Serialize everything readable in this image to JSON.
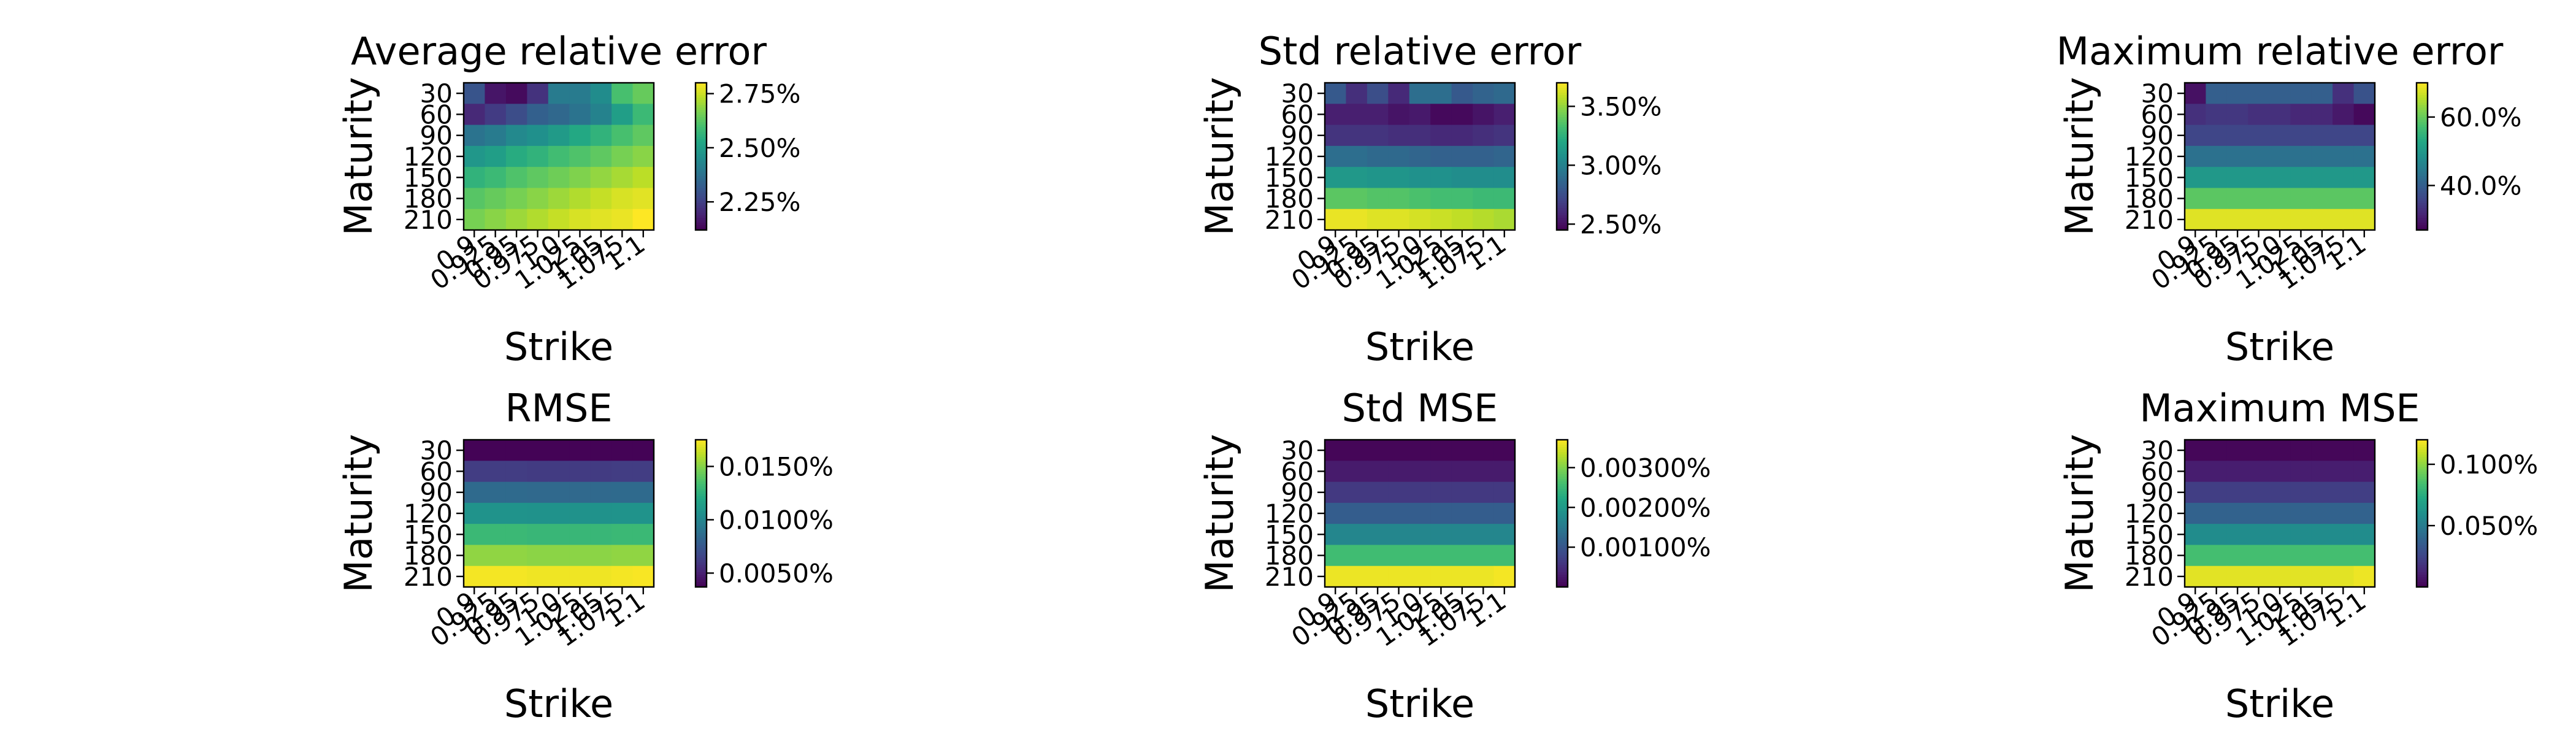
{
  "chart_data": [
    {
      "type": "heatmap",
      "title": "Average relative error",
      "xlabel": "Strike",
      "ylabel": "Maturity",
      "x_ticks": [
        "0.9",
        "0.925",
        "0.95",
        "0.975",
        "1.0",
        "1.025",
        "1.05",
        "1.075",
        "1.1"
      ],
      "y_ticks": [
        "30",
        "60",
        "90",
        "120",
        "150",
        "180",
        "210"
      ],
      "colormap": "viridis",
      "colorbar": {
        "min": 2.12,
        "max": 2.8,
        "ticks": [
          2.25,
          2.5,
          2.75
        ],
        "tick_labels": [
          "2.25%",
          "2.50%",
          "2.75%"
        ]
      },
      "values": [
        [
          2.3,
          2.16,
          2.14,
          2.22,
          2.4,
          2.4,
          2.45,
          2.6,
          2.64
        ],
        [
          2.2,
          2.24,
          2.28,
          2.33,
          2.35,
          2.38,
          2.42,
          2.5,
          2.58
        ],
        [
          2.38,
          2.4,
          2.44,
          2.46,
          2.49,
          2.53,
          2.56,
          2.6,
          2.63
        ],
        [
          2.48,
          2.5,
          2.54,
          2.56,
          2.59,
          2.61,
          2.63,
          2.66,
          2.68
        ],
        [
          2.56,
          2.58,
          2.61,
          2.63,
          2.65,
          2.67,
          2.69,
          2.71,
          2.73
        ],
        [
          2.62,
          2.64,
          2.66,
          2.68,
          2.7,
          2.72,
          2.74,
          2.76,
          2.77
        ],
        [
          2.66,
          2.68,
          2.7,
          2.72,
          2.74,
          2.76,
          2.77,
          2.78,
          2.8
        ]
      ]
    },
    {
      "type": "heatmap",
      "title": "Std relative error",
      "xlabel": "Strike",
      "ylabel": "Maturity",
      "x_ticks": [
        "0.9",
        "0.925",
        "0.95",
        "0.975",
        "1.0",
        "1.025",
        "1.05",
        "1.075",
        "1.1"
      ],
      "y_ticks": [
        "30",
        "60",
        "90",
        "120",
        "150",
        "180",
        "210"
      ],
      "colormap": "viridis",
      "colorbar": {
        "min": 2.45,
        "max": 3.7,
        "ticks": [
          2.5,
          3.0,
          3.5
        ],
        "tick_labels": [
          "2.50%",
          "3.00%",
          "3.50%"
        ]
      },
      "values": [
        [
          2.8,
          2.62,
          2.75,
          2.6,
          2.9,
          2.9,
          2.8,
          2.85,
          2.88
        ],
        [
          2.56,
          2.56,
          2.56,
          2.52,
          2.54,
          2.48,
          2.48,
          2.52,
          2.56
        ],
        [
          2.64,
          2.64,
          2.64,
          2.62,
          2.62,
          2.6,
          2.6,
          2.62,
          2.64
        ],
        [
          2.9,
          2.9,
          2.88,
          2.88,
          2.86,
          2.84,
          2.84,
          2.84,
          2.86
        ],
        [
          3.12,
          3.12,
          3.1,
          3.1,
          3.08,
          3.08,
          3.06,
          3.06,
          3.06
        ],
        [
          3.38,
          3.38,
          3.36,
          3.36,
          3.34,
          3.32,
          3.32,
          3.3,
          3.3
        ],
        [
          3.66,
          3.66,
          3.64,
          3.64,
          3.62,
          3.6,
          3.58,
          3.56,
          3.54
        ]
      ]
    },
    {
      "type": "heatmap",
      "title": "Maximum relative error",
      "xlabel": "Strike",
      "ylabel": "Maturity",
      "x_ticks": [
        "0.9",
        "0.925",
        "0.95",
        "0.975",
        "1.0",
        "1.025",
        "1.05",
        "1.075",
        "1.1"
      ],
      "y_ticks": [
        "30",
        "60",
        "90",
        "120",
        "150",
        "180",
        "210"
      ],
      "colormap": "viridis",
      "colorbar": {
        "min": 27.0,
        "max": 70.0,
        "ticks": [
          40.0,
          60.0
        ],
        "tick_labels": [
          "40.0%",
          "60.0%"
        ]
      },
      "values": [
        [
          29.0,
          40.0,
          40.0,
          40.0,
          40.0,
          40.0,
          40.0,
          33.0,
          38.0
        ],
        [
          33.0,
          34.0,
          34.0,
          33.0,
          33.0,
          32.0,
          32.0,
          30.0,
          28.0
        ],
        [
          36.0,
          36.0,
          36.0,
          36.0,
          36.0,
          36.0,
          36.0,
          36.0,
          36.0
        ],
        [
          43.0,
          43.0,
          43.0,
          43.0,
          43.0,
          43.0,
          43.0,
          43.0,
          43.0
        ],
        [
          50.0,
          50.0,
          50.0,
          50.0,
          50.0,
          50.0,
          50.0,
          50.0,
          50.0
        ],
        [
          59.0,
          59.0,
          59.0,
          59.0,
          59.0,
          59.0,
          59.0,
          59.0,
          59.0
        ],
        [
          68.0,
          68.0,
          68.0,
          68.0,
          68.0,
          68.0,
          68.0,
          68.0,
          68.0
        ]
      ]
    },
    {
      "type": "heatmap",
      "title": "RMSE",
      "xlabel": "Strike",
      "ylabel": "Maturity",
      "x_ticks": [
        "0.9",
        "0.925",
        "0.95",
        "0.975",
        "1.0",
        "1.025",
        "1.05",
        "1.075",
        "1.1"
      ],
      "y_ticks": [
        "30",
        "60",
        "90",
        "120",
        "150",
        "180",
        "210"
      ],
      "colormap": "viridis",
      "colorbar": {
        "min": 0.0037,
        "max": 0.0175,
        "ticks": [
          0.005,
          0.01,
          0.015
        ],
        "tick_labels": [
          "0.0050%",
          "0.0100%",
          "0.0150%"
        ]
      },
      "values": [
        [
          0.0038,
          0.0038,
          0.0038,
          0.0038,
          0.0038,
          0.0038,
          0.0038,
          0.0038,
          0.0038
        ],
        [
          0.0062,
          0.0062,
          0.0062,
          0.0061,
          0.0061,
          0.0061,
          0.0061,
          0.0062,
          0.0062
        ],
        [
          0.0085,
          0.0085,
          0.0085,
          0.0084,
          0.0084,
          0.0084,
          0.0084,
          0.0085,
          0.0085
        ],
        [
          0.0108,
          0.0108,
          0.0108,
          0.0107,
          0.0107,
          0.0107,
          0.0107,
          0.0108,
          0.0108
        ],
        [
          0.013,
          0.013,
          0.013,
          0.0129,
          0.0129,
          0.0129,
          0.0129,
          0.013,
          0.013
        ],
        [
          0.0152,
          0.0152,
          0.0152,
          0.0151,
          0.0151,
          0.0151,
          0.0151,
          0.0152,
          0.0152
        ],
        [
          0.0173,
          0.0173,
          0.0173,
          0.0172,
          0.0172,
          0.0172,
          0.0172,
          0.0173,
          0.0174
        ]
      ]
    },
    {
      "type": "heatmap",
      "title": "Std MSE",
      "xlabel": "Strike",
      "ylabel": "Maturity",
      "x_ticks": [
        "0.9",
        "0.925",
        "0.95",
        "0.975",
        "1.0",
        "1.025",
        "1.05",
        "1.075",
        "1.1"
      ],
      "y_ticks": [
        "30",
        "60",
        "90",
        "120",
        "150",
        "180",
        "210"
      ],
      "colormap": "viridis",
      "colorbar": {
        "min": 0.0,
        "max": 0.0037,
        "ticks": [
          0.001,
          0.002,
          0.003
        ],
        "tick_labels": [
          "0.00100%",
          "0.00200%",
          "0.00300%"
        ]
      },
      "values": [
        [
          5e-05,
          5e-05,
          5e-05,
          5e-05,
          5e-05,
          5e-05,
          5e-05,
          5e-05,
          5e-05
        ],
        [
          0.00028,
          0.00028,
          0.00028,
          0.00028,
          0.00028,
          0.00028,
          0.00028,
          0.00028,
          0.00028
        ],
        [
          0.00062,
          0.00062,
          0.00062,
          0.00062,
          0.00062,
          0.00062,
          0.00062,
          0.00062,
          0.00062
        ],
        [
          0.0011,
          0.0011,
          0.0011,
          0.0011,
          0.0011,
          0.0011,
          0.0011,
          0.0011,
          0.0011
        ],
        [
          0.0017,
          0.0017,
          0.0017,
          0.0017,
          0.0017,
          0.0017,
          0.0017,
          0.0017,
          0.0017
        ],
        [
          0.00255,
          0.00255,
          0.00255,
          0.00255,
          0.00255,
          0.00255,
          0.00255,
          0.00255,
          0.00255
        ],
        [
          0.0036,
          0.0036,
          0.0036,
          0.0036,
          0.0036,
          0.0036,
          0.0036,
          0.0036,
          0.00365
        ]
      ]
    },
    {
      "type": "heatmap",
      "title": "Maximum MSE",
      "xlabel": "Strike",
      "ylabel": "Maturity",
      "x_ticks": [
        "0.9",
        "0.925",
        "0.95",
        "0.975",
        "1.0",
        "1.025",
        "1.05",
        "1.075",
        "1.1"
      ],
      "y_ticks": [
        "30",
        "60",
        "90",
        "120",
        "150",
        "180",
        "210"
      ],
      "colormap": "viridis",
      "colorbar": {
        "min": 0.0,
        "max": 0.12,
        "ticks": [
          0.05,
          0.1
        ],
        "tick_labels": [
          "0.050%",
          "0.100%"
        ]
      },
      "values": [
        [
          0.002,
          0.002,
          0.002,
          0.002,
          0.002,
          0.002,
          0.002,
          0.002,
          0.002
        ],
        [
          0.01,
          0.01,
          0.01,
          0.01,
          0.01,
          0.01,
          0.01,
          0.01,
          0.01
        ],
        [
          0.022,
          0.022,
          0.022,
          0.022,
          0.022,
          0.022,
          0.022,
          0.022,
          0.022
        ],
        [
          0.038,
          0.038,
          0.038,
          0.038,
          0.038,
          0.038,
          0.038,
          0.038,
          0.038
        ],
        [
          0.058,
          0.058,
          0.058,
          0.058,
          0.058,
          0.058,
          0.058,
          0.058,
          0.058
        ],
        [
          0.084,
          0.084,
          0.084,
          0.084,
          0.084,
          0.084,
          0.084,
          0.084,
          0.084
        ],
        [
          0.115,
          0.115,
          0.115,
          0.115,
          0.115,
          0.115,
          0.115,
          0.115,
          0.117
        ]
      ]
    }
  ]
}
